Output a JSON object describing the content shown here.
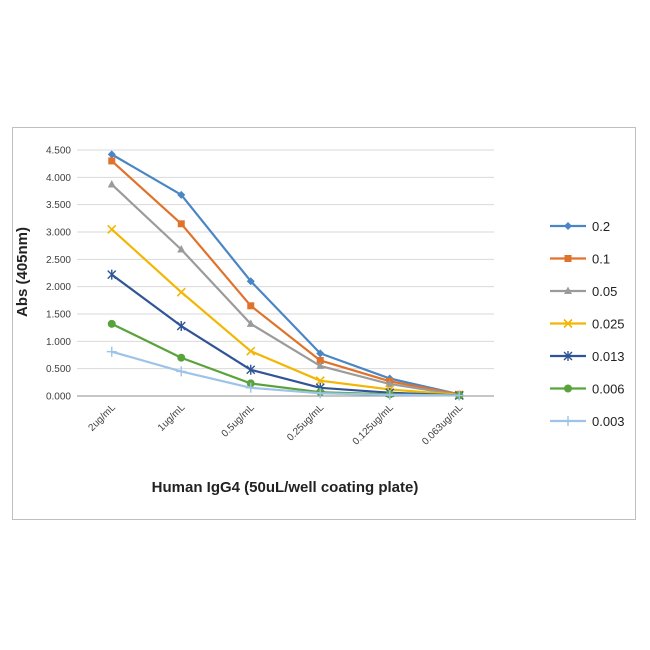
{
  "chart_data": {
    "type": "line",
    "title": "",
    "xlabel": "Human IgG4 (50uL/well coating plate)",
    "ylabel": "Abs (405nm)",
    "categories": [
      "2ug/mL",
      "1ug/mL",
      "0.5ug/mL",
      "0.25ug/mL",
      "0.125ug/mL",
      "0.063ug/mL"
    ],
    "ylim": [
      0,
      4.5
    ],
    "yticks": [
      "0.000",
      "0.500",
      "1.000",
      "1.500",
      "2.000",
      "2.500",
      "3.000",
      "3.500",
      "4.000",
      "4.500"
    ],
    "grid": true,
    "legend_position": "right",
    "series": [
      {
        "name": "0.2",
        "color": "#4a86c5",
        "marker": "diamond",
        "values": [
          4.42,
          3.68,
          2.1,
          0.78,
          0.32,
          0.03
        ]
      },
      {
        "name": "0.1",
        "color": "#e0732b",
        "marker": "square",
        "values": [
          4.3,
          3.15,
          1.65,
          0.65,
          0.27,
          0.03
        ]
      },
      {
        "name": "0.05",
        "color": "#9b9b9b",
        "marker": "triangle",
        "values": [
          3.87,
          2.68,
          1.32,
          0.55,
          0.22,
          0.02
        ]
      },
      {
        "name": "0.025",
        "color": "#f2b705",
        "marker": "x",
        "values": [
          3.05,
          1.9,
          0.82,
          0.28,
          0.12,
          0.02
        ]
      },
      {
        "name": "0.013",
        "color": "#2f5597",
        "marker": "star",
        "values": [
          2.22,
          1.28,
          0.48,
          0.15,
          0.06,
          0.01
        ]
      },
      {
        "name": "0.006",
        "color": "#5aa33c",
        "marker": "circle",
        "values": [
          1.32,
          0.7,
          0.23,
          0.07,
          0.03,
          0.01
        ]
      },
      {
        "name": "0.003",
        "color": "#9dc3e6",
        "marker": "plus",
        "values": [
          0.81,
          0.45,
          0.15,
          0.05,
          0.02,
          0.01
        ]
      }
    ]
  }
}
